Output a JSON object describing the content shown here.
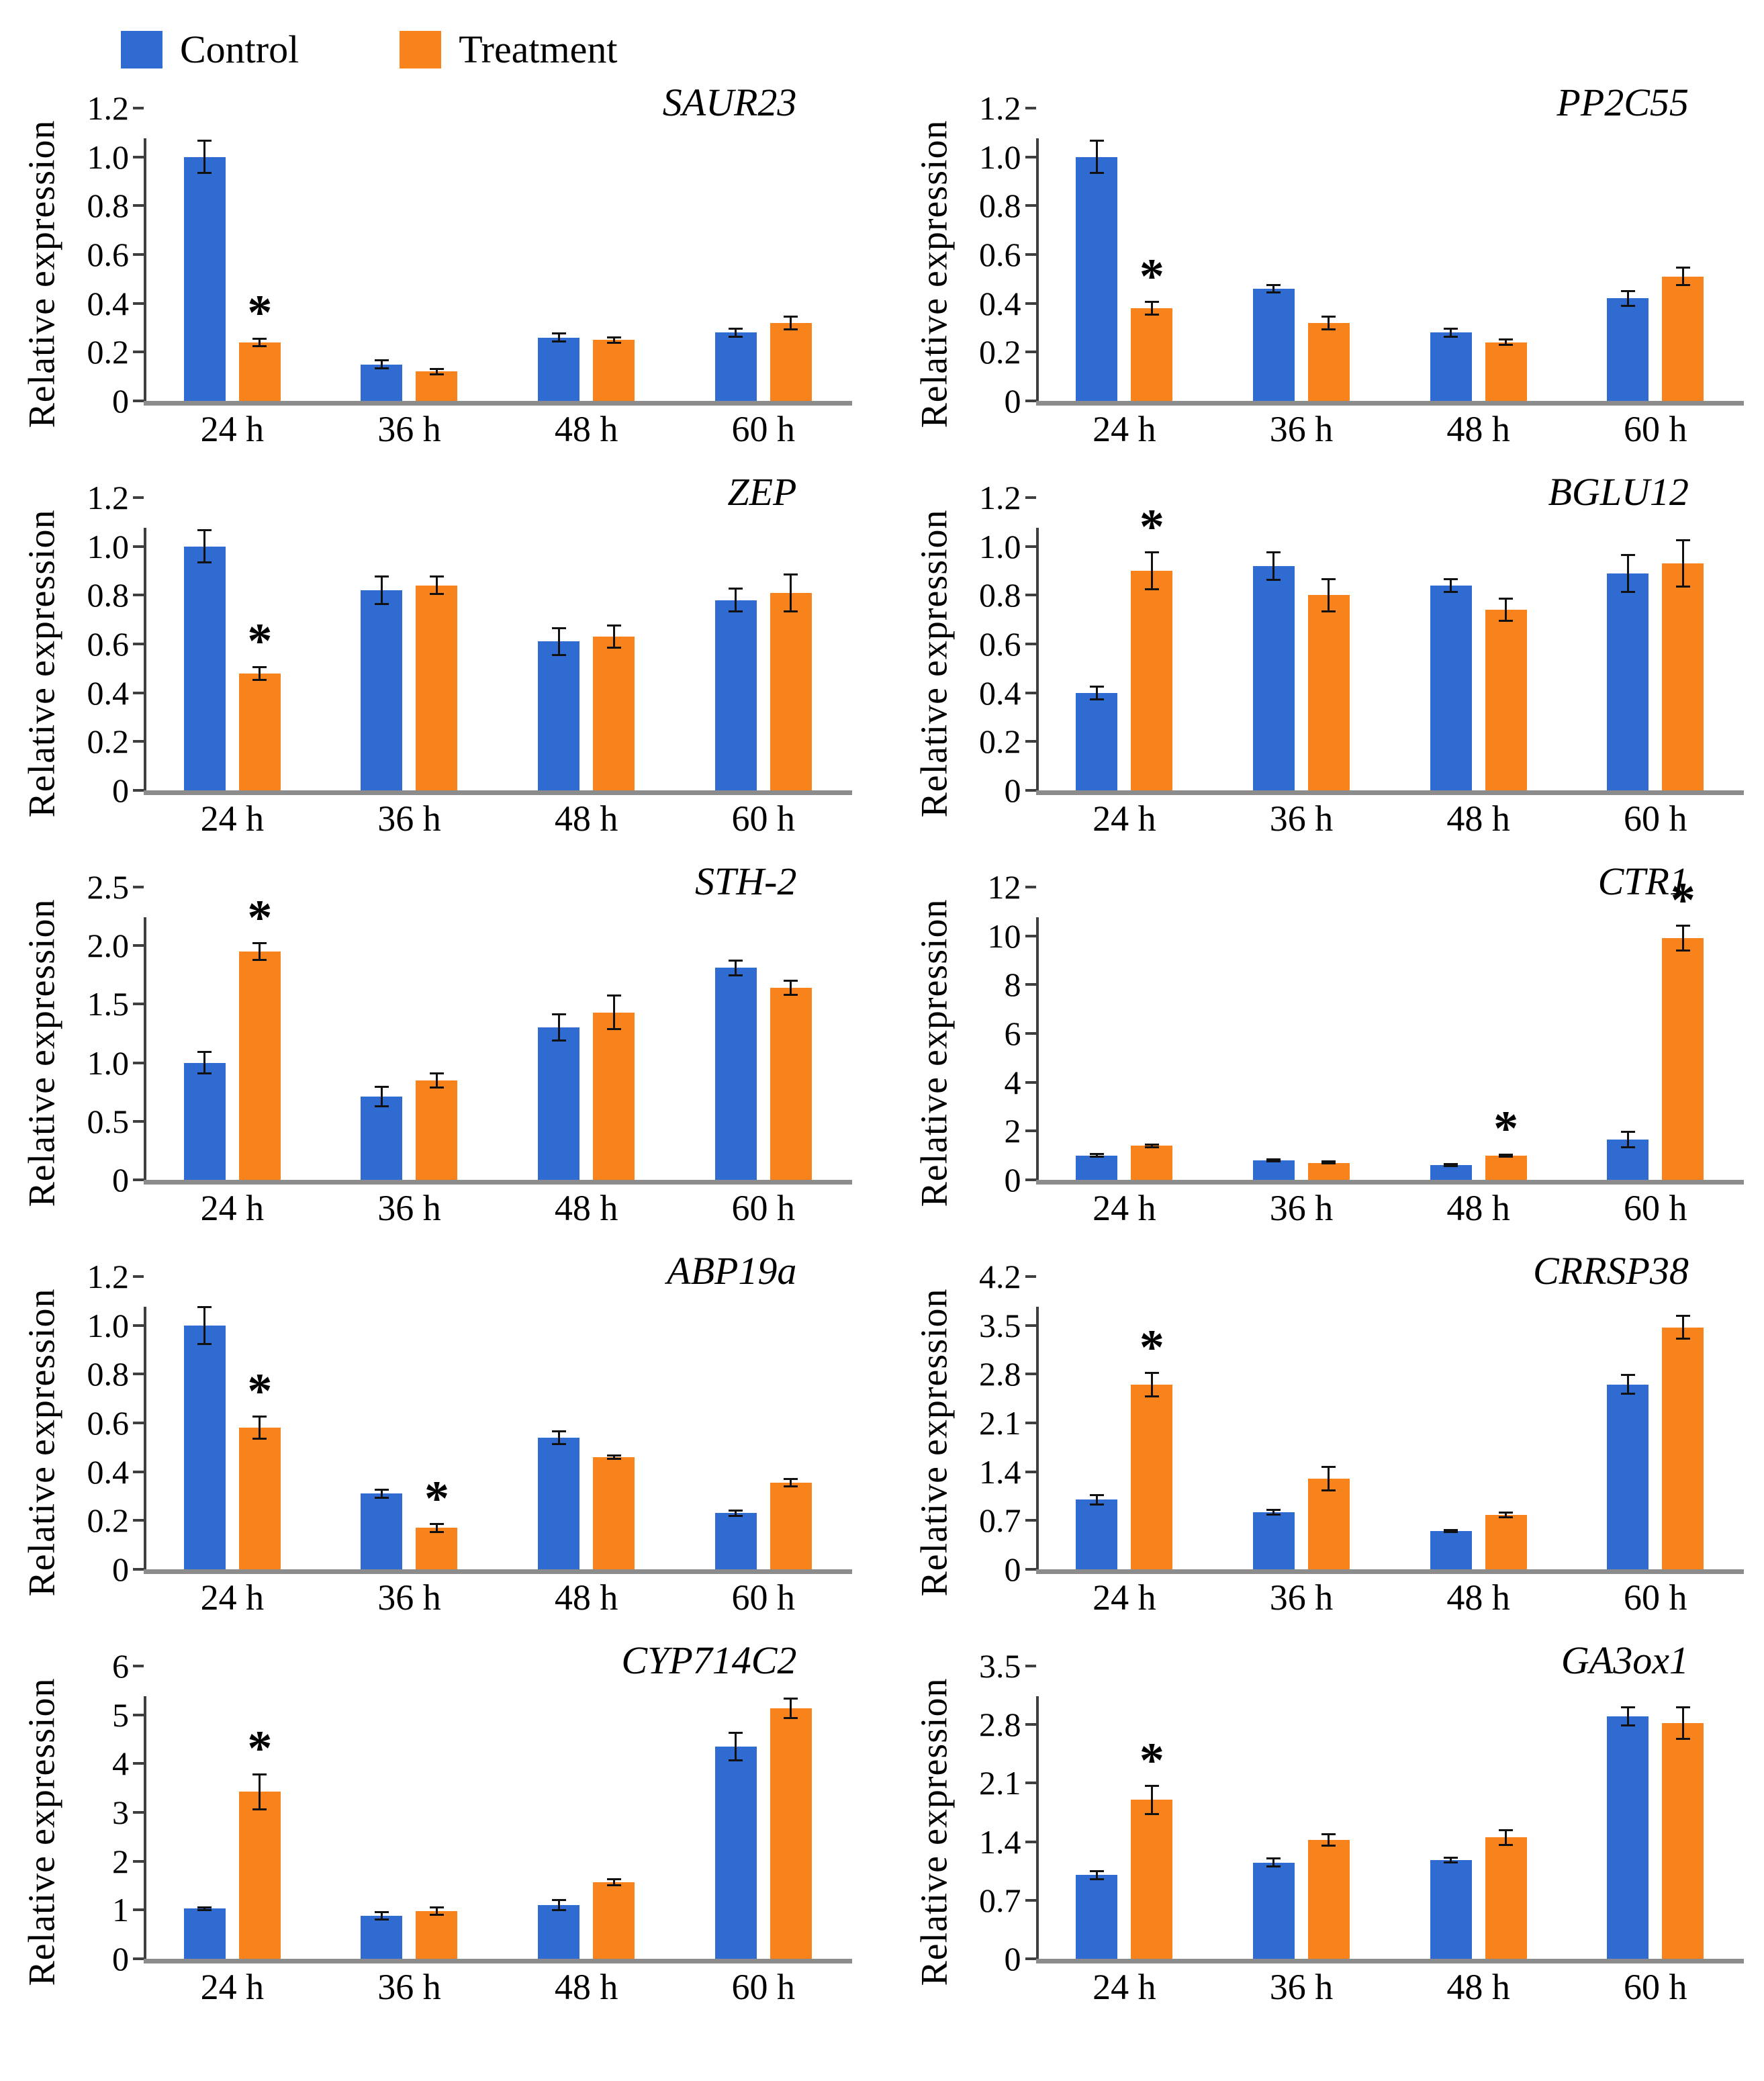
{
  "legend": {
    "items": [
      {
        "label": "Control",
        "color": "#2F6BD1"
      },
      {
        "label": "Treatment",
        "color": "#F8831D"
      }
    ]
  },
  "colors": {
    "control": "#2F6BD1",
    "treatment": "#F8831D",
    "axis_x": "#8C8C8C",
    "axis_y": "#3F3F3F",
    "error_bar": "#111111"
  },
  "chart_data": [
    {
      "type": "bar",
      "title": "SAUR23",
      "ylabel": "Relative expression",
      "ylim": [
        0,
        1.2
      ],
      "yticks": [
        "0",
        "0.2",
        "0.4",
        "0.6",
        "0.8",
        "1.0",
        "1.2"
      ],
      "categories": [
        "24 h",
        "36 h",
        "48 h",
        "60 h"
      ],
      "series": [
        {
          "name": "Control",
          "values": [
            1.0,
            0.15,
            0.26,
            0.28
          ],
          "errors": [
            0.07,
            0.02,
            0.02,
            0.02
          ]
        },
        {
          "name": "Treatment",
          "values": [
            0.24,
            0.12,
            0.25,
            0.32
          ],
          "errors": [
            0.02,
            0.015,
            0.015,
            0.03
          ]
        }
      ],
      "significant": [
        {
          "series": "Treatment",
          "category_index": 0
        }
      ]
    },
    {
      "type": "bar",
      "title": "PP2C55",
      "ylabel": "Relative expression",
      "ylim": [
        0,
        1.2
      ],
      "yticks": [
        "0",
        "0.2",
        "0.4",
        "0.6",
        "0.8",
        "1.0",
        "1.2"
      ],
      "categories": [
        "24 h",
        "36 h",
        "48 h",
        "60 h"
      ],
      "series": [
        {
          "name": "Control",
          "values": [
            1.0,
            0.46,
            0.28,
            0.42
          ],
          "errors": [
            0.07,
            0.02,
            0.02,
            0.035
          ]
        },
        {
          "name": "Treatment",
          "values": [
            0.38,
            0.32,
            0.24,
            0.51
          ],
          "errors": [
            0.03,
            0.03,
            0.015,
            0.04
          ]
        }
      ],
      "significant": [
        {
          "series": "Treatment",
          "category_index": 0
        }
      ]
    },
    {
      "type": "bar",
      "title": "ZEP",
      "ylabel": "Relative expression",
      "ylim": [
        0,
        1.2
      ],
      "yticks": [
        "0",
        "0.2",
        "0.4",
        "0.6",
        "0.8",
        "1.0",
        "1.2"
      ],
      "categories": [
        "24 h",
        "36 h",
        "48 h",
        "60 h"
      ],
      "series": [
        {
          "name": "Control",
          "values": [
            1.0,
            0.82,
            0.61,
            0.78
          ],
          "errors": [
            0.07,
            0.06,
            0.06,
            0.05
          ]
        },
        {
          "name": "Treatment",
          "values": [
            0.48,
            0.84,
            0.63,
            0.81
          ],
          "errors": [
            0.03,
            0.04,
            0.05,
            0.08
          ]
        }
      ],
      "significant": [
        {
          "series": "Treatment",
          "category_index": 0
        }
      ]
    },
    {
      "type": "bar",
      "title": "BGLU12",
      "ylabel": "Relative expression",
      "ylim": [
        0,
        1.2
      ],
      "yticks": [
        "0",
        "0.2",
        "0.4",
        "0.6",
        "0.8",
        "1.0",
        "1.2"
      ],
      "categories": [
        "24 h",
        "36 h",
        "48 h",
        "60 h"
      ],
      "series": [
        {
          "name": "Control",
          "values": [
            0.4,
            0.92,
            0.84,
            0.89
          ],
          "errors": [
            0.03,
            0.06,
            0.03,
            0.08
          ]
        },
        {
          "name": "Treatment",
          "values": [
            0.9,
            0.8,
            0.74,
            0.93
          ],
          "errors": [
            0.08,
            0.07,
            0.05,
            0.1
          ]
        }
      ],
      "significant": [
        {
          "series": "Treatment",
          "category_index": 0
        }
      ]
    },
    {
      "type": "bar",
      "title": "STH-2",
      "ylabel": "Relative expression",
      "ylim": [
        0,
        2.5
      ],
      "yticks": [
        "0",
        "0.5",
        "1.0",
        "1.5",
        "2.0",
        "2.5"
      ],
      "categories": [
        "24 h",
        "36 h",
        "48 h",
        "60 h"
      ],
      "series": [
        {
          "name": "Control",
          "values": [
            1.0,
            0.71,
            1.3,
            1.81
          ],
          "errors": [
            0.1,
            0.09,
            0.12,
            0.07
          ]
        },
        {
          "name": "Treatment",
          "values": [
            1.95,
            0.85,
            1.43,
            1.64
          ],
          "errors": [
            0.08,
            0.07,
            0.15,
            0.07
          ]
        }
      ],
      "significant": [
        {
          "series": "Treatment",
          "category_index": 0
        }
      ]
    },
    {
      "type": "bar",
      "title": "CTR1",
      "ylabel": "Relative expression",
      "ylim": [
        0,
        12
      ],
      "yticks": [
        "0",
        "2",
        "4",
        "6",
        "8",
        "10",
        "12"
      ],
      "categories": [
        "24 h",
        "36 h",
        "48 h",
        "60 h"
      ],
      "series": [
        {
          "name": "Control",
          "values": [
            1.0,
            0.8,
            0.6,
            1.65
          ],
          "errors": [
            0.1,
            0.08,
            0.07,
            0.35
          ]
        },
        {
          "name": "Treatment",
          "values": [
            1.4,
            0.7,
            1.0,
            9.9
          ],
          "errors": [
            0.1,
            0.08,
            0.08,
            0.55
          ]
        }
      ],
      "significant": [
        {
          "series": "Treatment",
          "category_index": 2
        },
        {
          "series": "Treatment",
          "category_index": 3
        }
      ]
    },
    {
      "type": "bar",
      "title": "ABP19a",
      "ylabel": "Relative expression",
      "ylim": [
        0,
        1.2
      ],
      "yticks": [
        "0",
        "0.2",
        "0.4",
        "0.6",
        "0.8",
        "1.0",
        "1.2"
      ],
      "categories": [
        "24 h",
        "36 h",
        "48 h",
        "60 h"
      ],
      "series": [
        {
          "name": "Control",
          "values": [
            1.0,
            0.31,
            0.54,
            0.23
          ],
          "errors": [
            0.08,
            0.02,
            0.03,
            0.015
          ]
        },
        {
          "name": "Treatment",
          "values": [
            0.58,
            0.17,
            0.46,
            0.355
          ],
          "errors": [
            0.05,
            0.02,
            0.01,
            0.02
          ]
        }
      ],
      "significant": [
        {
          "series": "Treatment",
          "category_index": 0
        },
        {
          "series": "Treatment",
          "category_index": 1
        }
      ]
    },
    {
      "type": "bar",
      "title": "CRRSP38",
      "ylabel": "Relative expression",
      "ylim": [
        0,
        4.2
      ],
      "yticks": [
        "0",
        "0.7",
        "1.4",
        "2.1",
        "2.8",
        "3.5",
        "4.2"
      ],
      "categories": [
        "24 h",
        "36 h",
        "48 h",
        "60 h"
      ],
      "series": [
        {
          "name": "Control",
          "values": [
            1.0,
            0.82,
            0.55,
            2.65
          ],
          "errors": [
            0.08,
            0.05,
            0.03,
            0.15
          ]
        },
        {
          "name": "Treatment",
          "values": [
            2.65,
            1.3,
            0.78,
            3.47
          ],
          "errors": [
            0.18,
            0.18,
            0.05,
            0.18
          ]
        }
      ],
      "significant": [
        {
          "series": "Treatment",
          "category_index": 0
        }
      ]
    },
    {
      "type": "bar",
      "title": "CYP714C2",
      "ylabel": "Relative expression",
      "ylim": [
        0,
        6
      ],
      "yticks": [
        "0",
        "1",
        "2",
        "3",
        "4",
        "5",
        "6"
      ],
      "categories": [
        "24 h",
        "36 h",
        "48 h",
        "60 h"
      ],
      "series": [
        {
          "name": "Control",
          "values": [
            1.03,
            0.88,
            1.1,
            4.35
          ],
          "errors": [
            0.05,
            0.1,
            0.12,
            0.3
          ]
        },
        {
          "name": "Treatment",
          "values": [
            3.42,
            0.98,
            1.57,
            5.13
          ],
          "errors": [
            0.38,
            0.1,
            0.08,
            0.22
          ]
        }
      ],
      "significant": [
        {
          "series": "Treatment",
          "category_index": 0
        }
      ]
    },
    {
      "type": "bar",
      "title": "GA3ox1",
      "ylabel": "Relative expression",
      "ylim": [
        0,
        3.5
      ],
      "yticks": [
        "0",
        "0.7",
        "1.4",
        "2.1",
        "2.8",
        "3.5"
      ],
      "categories": [
        "24 h",
        "36 h",
        "48 h",
        "60 h"
      ],
      "series": [
        {
          "name": "Control",
          "values": [
            1.0,
            1.15,
            1.18,
            2.9
          ],
          "errors": [
            0.06,
            0.06,
            0.04,
            0.12
          ]
        },
        {
          "name": "Treatment",
          "values": [
            1.9,
            1.42,
            1.45,
            2.82
          ],
          "errors": [
            0.18,
            0.08,
            0.1,
            0.2
          ]
        }
      ],
      "significant": [
        {
          "series": "Treatment",
          "category_index": 0
        }
      ]
    }
  ]
}
